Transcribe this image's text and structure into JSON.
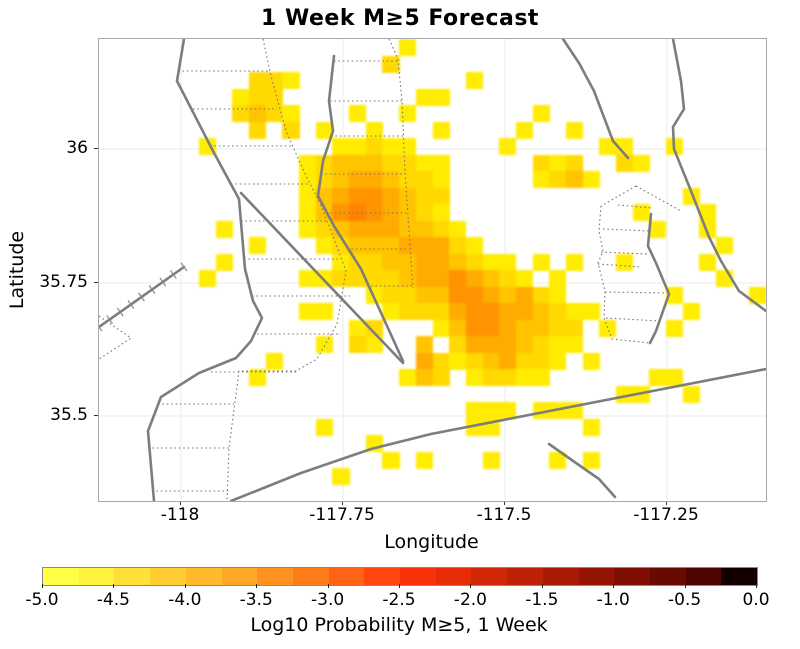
{
  "title": "1 Week M≥5 Forecast",
  "axes": {
    "x_label": "Longitude",
    "y_label": "Latitude",
    "x_tick_labels": [
      "-118",
      "-117.75",
      "-117.5",
      "-117.25"
    ],
    "y_tick_labels": [
      "36",
      "35.75",
      "35.5"
    ]
  },
  "colorbar": {
    "label": "Log10 Probability M≥5, 1 Week",
    "tick_labels": [
      "-5.0",
      "-4.5",
      "-4.0",
      "-3.5",
      "-3.0",
      "-2.5",
      "-2.0",
      "-1.5",
      "-1.0",
      "-0.5",
      "0.0"
    ],
    "segments": [
      "#ffff45",
      "#fff23e",
      "#ffe038",
      "#ffcd32",
      "#ffba2c",
      "#ffa726",
      "#ff9220",
      "#ff7c1a",
      "#ff6315",
      "#ff470f",
      "#f93309",
      "#e62d08",
      "#d22707",
      "#be2106",
      "#a91b05",
      "#941504",
      "#7f0f03",
      "#690a02",
      "#4e0501",
      "#120000"
    ]
  },
  "chart_data": {
    "type": "heatmap",
    "title": "1 Week M≥5 Forecast",
    "xlabel": "Longitude",
    "ylabel": "Latitude",
    "xlim": [
      -118.125,
      -117.095
    ],
    "ylim": [
      35.33,
      36.215
    ],
    "x_ticks": [
      -118,
      -117.75,
      -117.5,
      -117.25
    ],
    "y_ticks": [
      36,
      35.75,
      35.5
    ],
    "grid": "light gray gridlines at each tick",
    "legend_position": "colorbar below plot",
    "colorbar_range": [
      -5.0,
      0.0
    ],
    "colorbar_tick_step": 0.5,
    "colorbar_label": "Log10 Probability M≥5, 1 Week",
    "n_cols": 40,
    "n_rows": 28,
    "cell_palette": {
      "1": "#ffec00",
      "2": "#ffd900",
      "3": "#ffc300",
      "4": "#ffab00",
      "5": "#ff9300",
      "6": "#ff8300"
    },
    "level_log10_prob": {
      "1": -4.85,
      "2": -4.65,
      "3": -4.4,
      "4": -4.1,
      "5": -3.85,
      "6": -3.7
    },
    "grid_levels": [
      "0000000000000000001000000000000000000000",
      "0000000000000000020000000000000000000000",
      "0000000002210000000000100000000000000000",
      "0000000012200000000110000000000000000000",
      "0000000023210001001000000010000000000000",
      "0000000002020100100010000100100000000000",
      "0000001000000011211000001000001100100000",
      "0000000000001233322110000021200210000000",
      "0000000000001234432210000012310000000000",
      "0000000000001345543220000000000000010000",
      "0000000000001356543210000000000010001000",
      "0000000100001234443321000000000001001000",
      "0000000001000123334442100000000000000100",
      "0000000100000012233443211010100100001000",
      "0000001000001122223445432101000000000100",
      "0000000000000000122335543421000000100001",
      "0000000000001100012224554432110000010000",
      "0000000000000001200013554332201000100000",
      "0000000000000102100302444321100000000000",
      "0000000000100000000421234221010000000000",
      "0000000001000000001320122110000001100000",
      "0000000000000000000000000000000110010000",
      "0000000000000000000000111011100000000000",
      "0000000000000100000000110000010000000000",
      "0000000000000000100000000000000000000000",
      "0000000000000000010100010001010000000000",
      "0000000000000010000000000000000000000000",
      "0000000000000000000000000000000000000000"
    ]
  }
}
